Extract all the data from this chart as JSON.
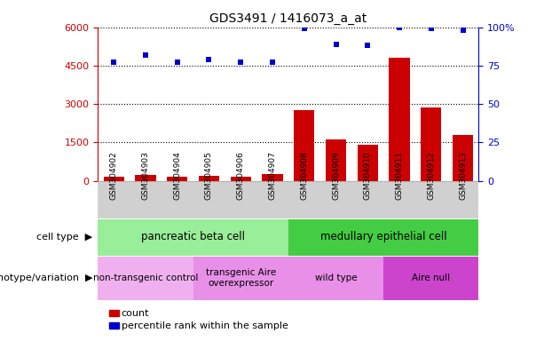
{
  "title": "GDS3491 / 1416073_a_at",
  "samples": [
    "GSM304902",
    "GSM304903",
    "GSM304904",
    "GSM304905",
    "GSM304906",
    "GSM304907",
    "GSM304908",
    "GSM304909",
    "GSM304910",
    "GSM304911",
    "GSM304912",
    "GSM304913"
  ],
  "counts": [
    150,
    230,
    170,
    200,
    160,
    270,
    2750,
    1600,
    1400,
    4800,
    2850,
    1800
  ],
  "percentiles": [
    77,
    82,
    77,
    79,
    77,
    77,
    99,
    89,
    88,
    100,
    99,
    98
  ],
  "ylim_left": [
    0,
    6000
  ],
  "ylim_right": [
    0,
    100
  ],
  "yticks_left": [
    0,
    1500,
    3000,
    4500,
    6000
  ],
  "yticks_right": [
    0,
    25,
    50,
    75,
    100
  ],
  "bar_color": "#cc0000",
  "dot_color": "#0000cc",
  "cell_type_groups": [
    {
      "label": "pancreatic beta cell",
      "start": 0,
      "end": 6,
      "color": "#99ee99"
    },
    {
      "label": "medullary epithelial cell",
      "start": 6,
      "end": 12,
      "color": "#44cc44"
    }
  ],
  "genotype_groups": [
    {
      "label": "non-transgenic control",
      "start": 0,
      "end": 3,
      "color": "#f0b0f0"
    },
    {
      "label": "transgenic Aire\noverexpressor",
      "start": 3,
      "end": 6,
      "color": "#e890e8"
    },
    {
      "label": "wild type",
      "start": 6,
      "end": 9,
      "color": "#e890e8"
    },
    {
      "label": "Aire null",
      "start": 9,
      "end": 12,
      "color": "#cc44cc"
    }
  ],
  "legend_items": [
    {
      "label": "count",
      "color": "#cc0000"
    },
    {
      "label": "percentile rank within the sample",
      "color": "#0000cc"
    }
  ],
  "left_axis_color": "#cc0000",
  "right_axis_color": "#0000cc",
  "fig_width": 6.13,
  "fig_height": 3.84,
  "dpi": 100
}
